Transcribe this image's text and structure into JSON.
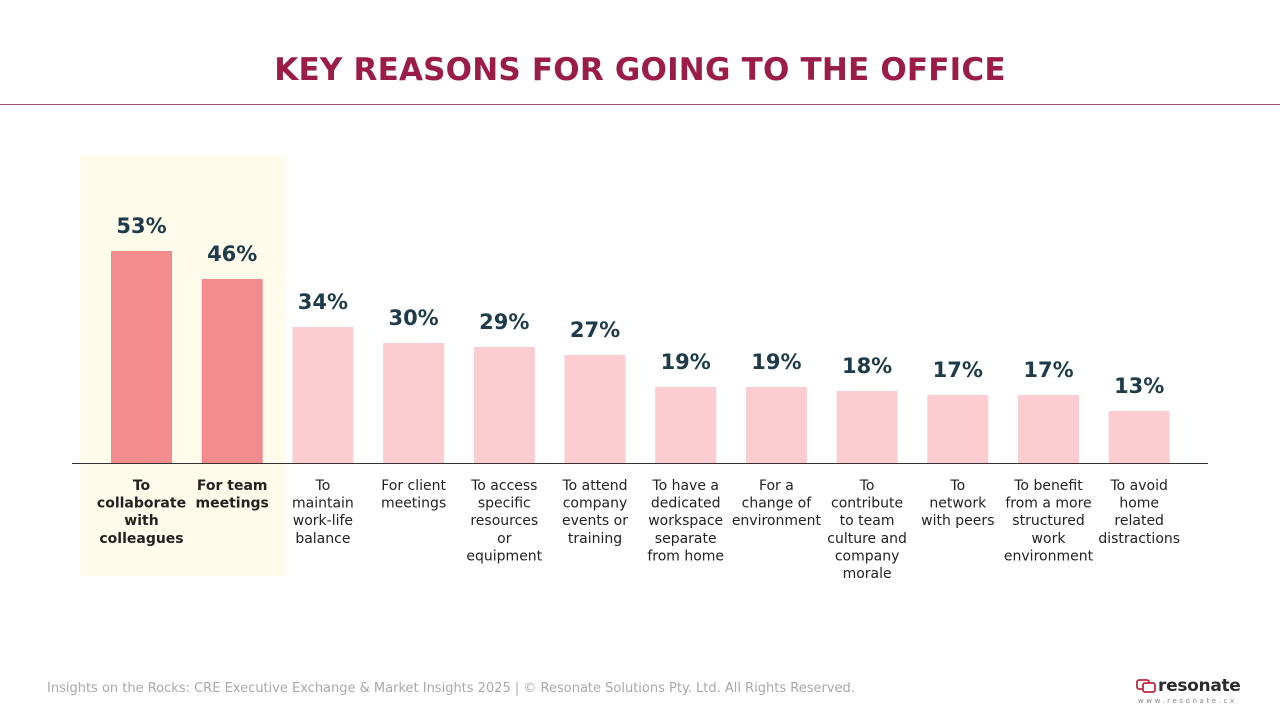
{
  "title": "KEY REASONS FOR GOING TO THE OFFICE",
  "footer": "Insights on the Rocks: CRE Executive Exchange & Market Insights 2025 | © Resonate Solutions Pty. Ltd. All Rights Reserved.",
  "logo": {
    "word": "resonate",
    "url": "www.resonate.cx"
  },
  "colors": {
    "title": "#9b1c47",
    "highlight_bar": "#f28b8e",
    "normal_bar": "#fbcdd0",
    "value_label": "#1d3b4a",
    "highlight_band": "#fefbea"
  },
  "chart_data": {
    "type": "bar",
    "title": "KEY REASONS FOR GOING TO THE OFFICE",
    "value_suffix": "%",
    "ylim": [
      0,
      100
    ],
    "grid": false,
    "highlighted": [
      0,
      1
    ],
    "categories": [
      [
        "To",
        "collaborate",
        "with",
        "colleagues"
      ],
      [
        "For team",
        "meetings"
      ],
      [
        "To",
        "maintain",
        "work-life",
        "balance"
      ],
      [
        "For client",
        "meetings"
      ],
      [
        "To access",
        "specific",
        "resources",
        "or",
        "equipment"
      ],
      [
        "To attend",
        "company",
        "events or",
        "training"
      ],
      [
        "To have a",
        "dedicated",
        "workspace",
        "separate",
        "from home"
      ],
      [
        "For a",
        "change of",
        "environment"
      ],
      [
        "To",
        "contribute",
        "to team",
        "culture and",
        "company",
        "morale"
      ],
      [
        "To",
        "network",
        "with peers"
      ],
      [
        "To benefit",
        "from a more",
        "structured",
        "work",
        "environment"
      ],
      [
        "To avoid",
        "home",
        "related",
        "distractions"
      ]
    ],
    "values": [
      53,
      46,
      34,
      30,
      29,
      27,
      19,
      19,
      18,
      17,
      17,
      13
    ]
  }
}
